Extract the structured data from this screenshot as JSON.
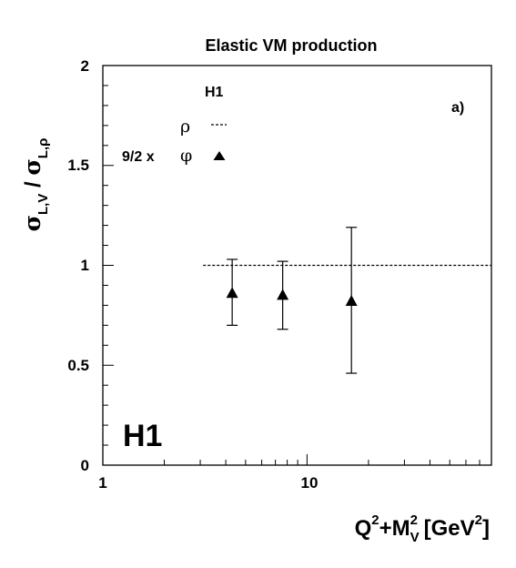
{
  "chart_data": {
    "type": "scatter",
    "title": "Elastic VM production",
    "xlabel": {
      "main": "Q",
      "sup1": "2",
      "plus": "+M",
      "sub": "V",
      "sup2": "2",
      "unit_open": " [GeV",
      "unit_sup": "2",
      "unit_close": "]"
    },
    "ylabel": {
      "sigma1": "σ",
      "sub1": "L,V",
      "slash": " / ",
      "sigma2": "σ",
      "sub2": "L,ρ"
    },
    "xscale": "log",
    "xlim": [
      1,
      80
    ],
    "ylim": [
      0,
      2
    ],
    "x_tick_labels": [
      "1",
      "10"
    ],
    "y_tick_labels": [
      "0",
      "0.5",
      "1",
      "1.5",
      "2"
    ],
    "grid": false,
    "legend": {
      "placement": "top-left",
      "header": "H1",
      "rho_symbol": "ρ",
      "phi_symbol": "φ",
      "phi_prefix": "9/2 x"
    },
    "panel_label": "a)",
    "logo": "H1",
    "series": [
      {
        "kind": "reference-line",
        "x_range": [
          3.1,
          80
        ],
        "y": 1.0
      },
      {
        "kind": "points",
        "points": [
          {
            "x": 4.3,
            "y": 0.86,
            "err_lo": 0.7,
            "err_hi": 1.03
          },
          {
            "x": 7.6,
            "y": 0.85,
            "err_lo": 0.68,
            "err_hi": 1.02
          },
          {
            "x": 16.5,
            "y": 0.82,
            "err_lo": 0.46,
            "err_hi": 1.19
          }
        ]
      }
    ]
  }
}
